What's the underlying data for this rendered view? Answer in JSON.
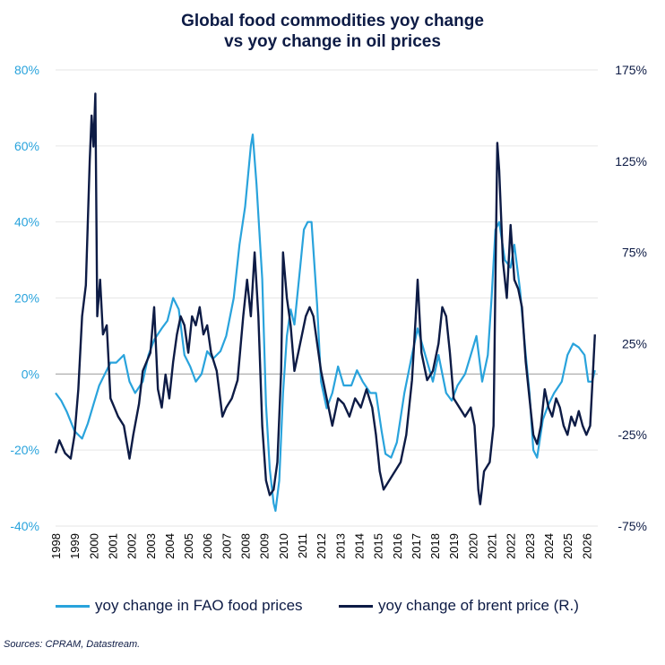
{
  "title_line1": "Global food commodities yoy change",
  "title_line2": "vs yoy change in oil prices",
  "source": "Sources: CPRAM, Datastream.",
  "colors": {
    "food": "#29a3dc",
    "oil": "#0d1b45",
    "grid": "#e6e6e6",
    "zero": "#a6a6a6"
  },
  "chart_data": {
    "type": "line",
    "title": "Global food commodities yoy change vs yoy change in oil prices",
    "x_ticks": [
      "1998",
      "1999",
      "2000",
      "2001",
      "2002",
      "2003",
      "2004",
      "2005",
      "2006",
      "2007",
      "2008",
      "2009",
      "2010",
      "2011",
      "2012",
      "2013",
      "2014",
      "2015",
      "2016",
      "2017",
      "2018",
      "2019",
      "2020",
      "2021",
      "2022",
      "2023",
      "2024",
      "2025",
      "2026"
    ],
    "xlim": [
      1998,
      2026.6
    ],
    "y_left": {
      "lim": [
        -40,
        80
      ],
      "ticks": [
        "-40%",
        "-20%",
        "0%",
        "20%",
        "40%",
        "60%",
        "80%"
      ]
    },
    "y_right": {
      "lim": [
        -75,
        175
      ],
      "ticks": [
        "-75%",
        "-25%",
        "25%",
        "75%",
        "125%",
        "175%"
      ]
    },
    "grid": true,
    "legend_position": "bottom",
    "series": [
      {
        "name": "yoy change in FAO food prices",
        "axis": "left",
        "points": [
          [
            1998.0,
            -5
          ],
          [
            1998.3,
            -7
          ],
          [
            1998.6,
            -10
          ],
          [
            1999.0,
            -15
          ],
          [
            1999.4,
            -17
          ],
          [
            1999.7,
            -13
          ],
          [
            2000.0,
            -8
          ],
          [
            2000.3,
            -3
          ],
          [
            2000.6,
            0
          ],
          [
            2000.9,
            3
          ],
          [
            2001.2,
            3
          ],
          [
            2001.6,
            5
          ],
          [
            2001.9,
            -2
          ],
          [
            2002.2,
            -5
          ],
          [
            2002.6,
            -2
          ],
          [
            2002.9,
            5
          ],
          [
            2003.2,
            9
          ],
          [
            2003.6,
            12
          ],
          [
            2003.9,
            14
          ],
          [
            2004.2,
            20
          ],
          [
            2004.5,
            17
          ],
          [
            2004.8,
            5
          ],
          [
            2005.1,
            2
          ],
          [
            2005.4,
            -2
          ],
          [
            2005.7,
            0
          ],
          [
            2006.0,
            6
          ],
          [
            2006.3,
            4
          ],
          [
            2006.7,
            6
          ],
          [
            2007.0,
            10
          ],
          [
            2007.4,
            20
          ],
          [
            2007.7,
            34
          ],
          [
            2008.0,
            44
          ],
          [
            2008.3,
            60
          ],
          [
            2008.4,
            63
          ],
          [
            2008.6,
            50
          ],
          [
            2008.9,
            25
          ],
          [
            2009.1,
            -8
          ],
          [
            2009.3,
            -25
          ],
          [
            2009.5,
            -34
          ],
          [
            2009.6,
            -36
          ],
          [
            2009.8,
            -28
          ],
          [
            2010.0,
            -5
          ],
          [
            2010.2,
            10
          ],
          [
            2010.4,
            17
          ],
          [
            2010.6,
            13
          ],
          [
            2010.9,
            28
          ],
          [
            2011.1,
            38
          ],
          [
            2011.3,
            40
          ],
          [
            2011.5,
            40
          ],
          [
            2011.8,
            18
          ],
          [
            2012.0,
            -2
          ],
          [
            2012.3,
            -9
          ],
          [
            2012.6,
            -5
          ],
          [
            2012.9,
            2
          ],
          [
            2013.2,
            -3
          ],
          [
            2013.6,
            -3
          ],
          [
            2013.9,
            1
          ],
          [
            2014.2,
            -2
          ],
          [
            2014.6,
            -5
          ],
          [
            2014.9,
            -5
          ],
          [
            2015.2,
            -15
          ],
          [
            2015.4,
            -21
          ],
          [
            2015.7,
            -22
          ],
          [
            2016.0,
            -18
          ],
          [
            2016.4,
            -5
          ],
          [
            2016.8,
            5
          ],
          [
            2017.1,
            12
          ],
          [
            2017.5,
            5
          ],
          [
            2017.9,
            -2
          ],
          [
            2018.2,
            5
          ],
          [
            2018.6,
            -5
          ],
          [
            2018.9,
            -7
          ],
          [
            2019.2,
            -3
          ],
          [
            2019.6,
            0
          ],
          [
            2019.9,
            5
          ],
          [
            2020.2,
            10
          ],
          [
            2020.5,
            -2
          ],
          [
            2020.8,
            5
          ],
          [
            2021.0,
            20
          ],
          [
            2021.2,
            38
          ],
          [
            2021.4,
            40
          ],
          [
            2021.7,
            30
          ],
          [
            2022.0,
            28
          ],
          [
            2022.2,
            34
          ],
          [
            2022.5,
            22
          ],
          [
            2022.8,
            5
          ],
          [
            2023.0,
            -5
          ],
          [
            2023.2,
            -20
          ],
          [
            2023.4,
            -22
          ],
          [
            2023.7,
            -12
          ],
          [
            2024.0,
            -8
          ],
          [
            2024.3,
            -5
          ],
          [
            2024.7,
            -2
          ],
          [
            2025.0,
            5
          ],
          [
            2025.3,
            8
          ],
          [
            2025.6,
            7
          ],
          [
            2025.9,
            5
          ],
          [
            2026.1,
            -2
          ],
          [
            2026.3,
            -2
          ],
          [
            2026.45,
            1
          ]
        ]
      },
      {
        "name": "yoy change of brent price (R.)",
        "axis": "right",
        "points": [
          [
            1998.0,
            -35
          ],
          [
            1998.2,
            -28
          ],
          [
            1998.5,
            -35
          ],
          [
            1998.8,
            -38
          ],
          [
            1999.0,
            -25
          ],
          [
            1999.2,
            0
          ],
          [
            1999.4,
            40
          ],
          [
            1999.6,
            57
          ],
          [
            1999.8,
            125
          ],
          [
            1999.9,
            150
          ],
          [
            2000.0,
            133
          ],
          [
            2000.1,
            162
          ],
          [
            2000.2,
            40
          ],
          [
            2000.35,
            60
          ],
          [
            2000.5,
            30
          ],
          [
            2000.7,
            35
          ],
          [
            2000.9,
            -5
          ],
          [
            2001.1,
            -10
          ],
          [
            2001.3,
            -15
          ],
          [
            2001.6,
            -20
          ],
          [
            2001.9,
            -38
          ],
          [
            2002.1,
            -25
          ],
          [
            2002.4,
            -8
          ],
          [
            2002.6,
            10
          ],
          [
            2002.8,
            15
          ],
          [
            2003.0,
            20
          ],
          [
            2003.2,
            45
          ],
          [
            2003.4,
            0
          ],
          [
            2003.6,
            -10
          ],
          [
            2003.8,
            8
          ],
          [
            2004.0,
            -5
          ],
          [
            2004.2,
            15
          ],
          [
            2004.4,
            30
          ],
          [
            2004.6,
            40
          ],
          [
            2004.8,
            35
          ],
          [
            2005.0,
            20
          ],
          [
            2005.2,
            40
          ],
          [
            2005.4,
            35
          ],
          [
            2005.6,
            45
          ],
          [
            2005.8,
            30
          ],
          [
            2006.0,
            35
          ],
          [
            2006.2,
            20
          ],
          [
            2006.5,
            10
          ],
          [
            2006.8,
            -15
          ],
          [
            2007.0,
            -10
          ],
          [
            2007.3,
            -5
          ],
          [
            2007.6,
            5
          ],
          [
            2007.9,
            40
          ],
          [
            2008.1,
            60
          ],
          [
            2008.3,
            40
          ],
          [
            2008.5,
            75
          ],
          [
            2008.7,
            40
          ],
          [
            2008.9,
            -20
          ],
          [
            2009.1,
            -50
          ],
          [
            2009.3,
            -58
          ],
          [
            2009.5,
            -55
          ],
          [
            2009.7,
            -40
          ],
          [
            2009.9,
            10
          ],
          [
            2010.0,
            75
          ],
          [
            2010.2,
            50
          ],
          [
            2010.4,
            35
          ],
          [
            2010.6,
            10
          ],
          [
            2010.8,
            20
          ],
          [
            2011.0,
            30
          ],
          [
            2011.2,
            40
          ],
          [
            2011.4,
            45
          ],
          [
            2011.6,
            40
          ],
          [
            2011.8,
            25
          ],
          [
            2012.0,
            10
          ],
          [
            2012.3,
            -5
          ],
          [
            2012.6,
            -20
          ],
          [
            2012.9,
            -5
          ],
          [
            2013.2,
            -8
          ],
          [
            2013.5,
            -15
          ],
          [
            2013.8,
            -5
          ],
          [
            2014.1,
            -10
          ],
          [
            2014.4,
            0
          ],
          [
            2014.7,
            -10
          ],
          [
            2014.9,
            -25
          ],
          [
            2015.1,
            -45
          ],
          [
            2015.3,
            -55
          ],
          [
            2015.6,
            -50
          ],
          [
            2015.9,
            -45
          ],
          [
            2016.2,
            -40
          ],
          [
            2016.5,
            -25
          ],
          [
            2016.8,
            5
          ],
          [
            2017.0,
            40
          ],
          [
            2017.1,
            60
          ],
          [
            2017.3,
            20
          ],
          [
            2017.6,
            5
          ],
          [
            2017.9,
            10
          ],
          [
            2018.2,
            25
          ],
          [
            2018.4,
            45
          ],
          [
            2018.6,
            40
          ],
          [
            2018.8,
            20
          ],
          [
            2019.0,
            -5
          ],
          [
            2019.3,
            -10
          ],
          [
            2019.6,
            -15
          ],
          [
            2019.9,
            -10
          ],
          [
            2020.1,
            -20
          ],
          [
            2020.3,
            -55
          ],
          [
            2020.4,
            -63
          ],
          [
            2020.6,
            -45
          ],
          [
            2020.9,
            -40
          ],
          [
            2021.1,
            -20
          ],
          [
            2021.2,
            60
          ],
          [
            2021.3,
            135
          ],
          [
            2021.4,
            120
          ],
          [
            2021.6,
            70
          ],
          [
            2021.8,
            50
          ],
          [
            2022.0,
            90
          ],
          [
            2022.2,
            60
          ],
          [
            2022.4,
            55
          ],
          [
            2022.6,
            45
          ],
          [
            2022.8,
            15
          ],
          [
            2023.0,
            -5
          ],
          [
            2023.2,
            -25
          ],
          [
            2023.4,
            -30
          ],
          [
            2023.6,
            -20
          ],
          [
            2023.8,
            0
          ],
          [
            2024.0,
            -10
          ],
          [
            2024.2,
            -15
          ],
          [
            2024.4,
            -5
          ],
          [
            2024.6,
            -10
          ],
          [
            2024.8,
            -20
          ],
          [
            2025.0,
            -25
          ],
          [
            2025.2,
            -15
          ],
          [
            2025.4,
            -20
          ],
          [
            2025.6,
            -12
          ],
          [
            2025.8,
            -20
          ],
          [
            2026.0,
            -25
          ],
          [
            2026.2,
            -20
          ],
          [
            2026.35,
            10
          ],
          [
            2026.45,
            30
          ]
        ]
      }
    ]
  }
}
